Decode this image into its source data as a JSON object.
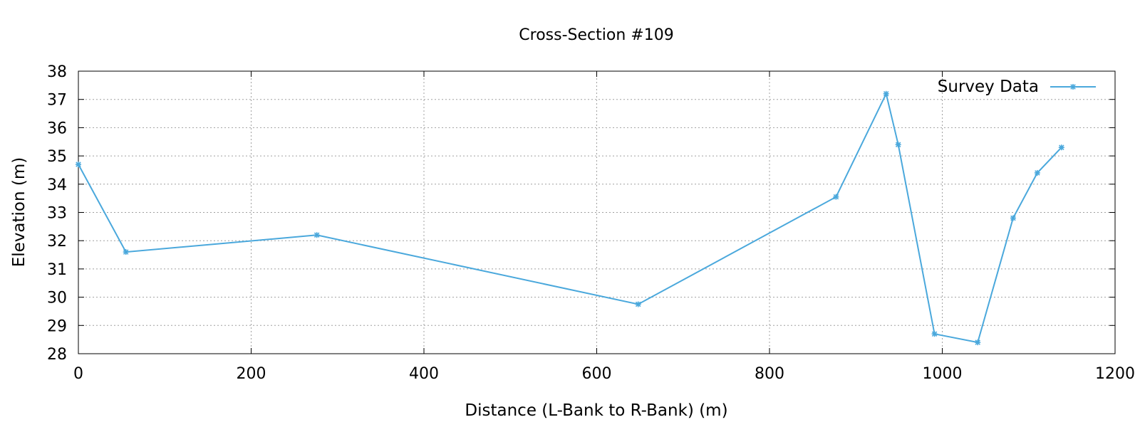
{
  "chart_data": {
    "type": "line",
    "title": "Cross-Section #109",
    "xlabel": "Distance (L-Bank to R-Bank) (m)",
    "ylabel": "Elevation (m)",
    "xlim": [
      0,
      1200
    ],
    "ylim": [
      28,
      38
    ],
    "xticks": [
      0,
      200,
      400,
      600,
      800,
      1000,
      1200
    ],
    "yticks": [
      28,
      29,
      30,
      31,
      32,
      33,
      34,
      35,
      36,
      37,
      38
    ],
    "grid": true,
    "legend_position": "top-right",
    "series": [
      {
        "name": "Survey Data",
        "color": "#4aa8dc",
        "marker": "star",
        "x": [
          0,
          55,
          276,
          648,
          877,
          935,
          949,
          991,
          1041,
          1082,
          1110,
          1138
        ],
        "y": [
          34.7,
          31.6,
          32.2,
          29.75,
          33.55,
          37.2,
          35.4,
          28.7,
          28.4,
          32.8,
          34.4,
          35.3
        ]
      }
    ]
  }
}
